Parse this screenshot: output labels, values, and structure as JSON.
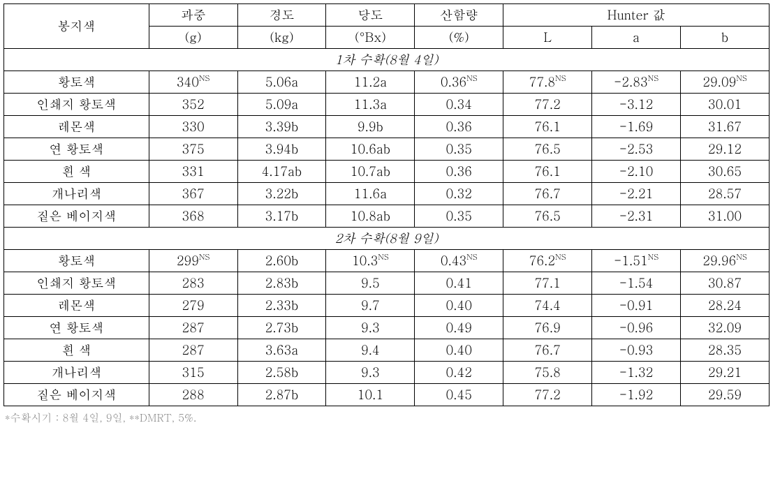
{
  "headers": {
    "bag_color": "봉지색",
    "weight_label": "과중",
    "weight_unit": "(g)",
    "firmness_label": "경도",
    "firmness_unit": "(kg)",
    "sugar_label": "당도",
    "sugar_unit": "(°Bx)",
    "acid_label": "산함량",
    "acid_unit": "(%)",
    "hunter_label": "Hunter 값",
    "hunter_L": "L",
    "hunter_a": "a",
    "hunter_b": "b"
  },
  "sections": [
    {
      "title": "1차 수확(8월 4일)",
      "rows": [
        {
          "bag": "황토색",
          "w": "340",
          "w_sup": "NS",
          "f": "5.06a",
          "s": "11.2a",
          "a": "0.36",
          "a_sup": "NS",
          "L": "77.8",
          "L_sup": "NS",
          "ha": "-2.83",
          "ha_sup": "NS",
          "hb": "29.09",
          "hb_sup": "NS"
        },
        {
          "bag": "인쇄지 황토색",
          "w": "352",
          "f": "5.09a",
          "s": "11.3a",
          "a": "0.34",
          "L": "77.2",
          "ha": "-3.12",
          "hb": "30.01"
        },
        {
          "bag": "레몬색",
          "w": "330",
          "f": "3.39b",
          "s": "9.9b",
          "a": "0.36",
          "L": "76.1",
          "ha": "-1.69",
          "hb": "31.67"
        },
        {
          "bag": "연 황토색",
          "w": "375",
          "f": "3.94b",
          "s": "10.6ab",
          "a": "0.35",
          "L": "76.5",
          "ha": "-2.53",
          "hb": "29.12"
        },
        {
          "bag": "흰 색",
          "w": "331",
          "f": "4.17ab",
          "s": "10.7ab",
          "a": "0.36",
          "L": "76.1",
          "ha": "-2.10",
          "hb": "30.65"
        },
        {
          "bag": "개나리색",
          "w": "367",
          "f": "3.22b",
          "s": "11.6a",
          "a": "0.32",
          "L": "76.7",
          "ha": "-2.21",
          "hb": "28.57"
        },
        {
          "bag": "짙은 베이지색",
          "w": "368",
          "f": "3.17b",
          "s": "10.8ab",
          "a": "0.35",
          "L": "76.5",
          "ha": "-2.31",
          "hb": "31.00"
        }
      ]
    },
    {
      "title": "2차 수확(8월 9일)",
      "rows": [
        {
          "bag": "황토색",
          "w": "299",
          "w_sup": "NS",
          "f": "2.60b",
          "s": "10.3",
          "s_sup": "NS",
          "a": "0.43",
          "a_sup": "NS",
          "L": "76.2",
          "L_sup": "NS",
          "ha": "-1.51",
          "ha_sup": "NS",
          "hb": "29.96",
          "hb_sup": "NS"
        },
        {
          "bag": "인쇄지 황토색",
          "w": "283",
          "f": "2.83b",
          "s": "9.5",
          "a": "0.41",
          "L": "77.1",
          "ha": "-1.54",
          "hb": "30.87"
        },
        {
          "bag": "레몬색",
          "w": "279",
          "f": "2.33b",
          "s": "9.7",
          "a": "0.40",
          "L": "74.4",
          "ha": "-0.91",
          "hb": "28.24"
        },
        {
          "bag": "연 황토색",
          "w": "287",
          "f": "2.73b",
          "s": "9.3",
          "a": "0.49",
          "L": "76.9",
          "ha": "-0.96",
          "hb": "32.09"
        },
        {
          "bag": "흰 색",
          "w": "287",
          "f": "3.63a",
          "s": "9.4",
          "a": "0.40",
          "L": "76.7",
          "ha": "-0.93",
          "hb": "28.35"
        },
        {
          "bag": "개나리색",
          "w": "315",
          "f": "2.58b",
          "s": "9.3",
          "a": "0.42",
          "L": "75.8",
          "ha": "-1.32",
          "hb": "29.21"
        },
        {
          "bag": "짙은 베이지색",
          "w": "288",
          "f": "2.87b",
          "s": "10.1",
          "a": "0.45",
          "L": "77.2",
          "ha": "-1.92",
          "hb": "29.59"
        }
      ]
    }
  ],
  "note": "*수확시기 : 8월 4일, 9일, **DMRT, 5%."
}
